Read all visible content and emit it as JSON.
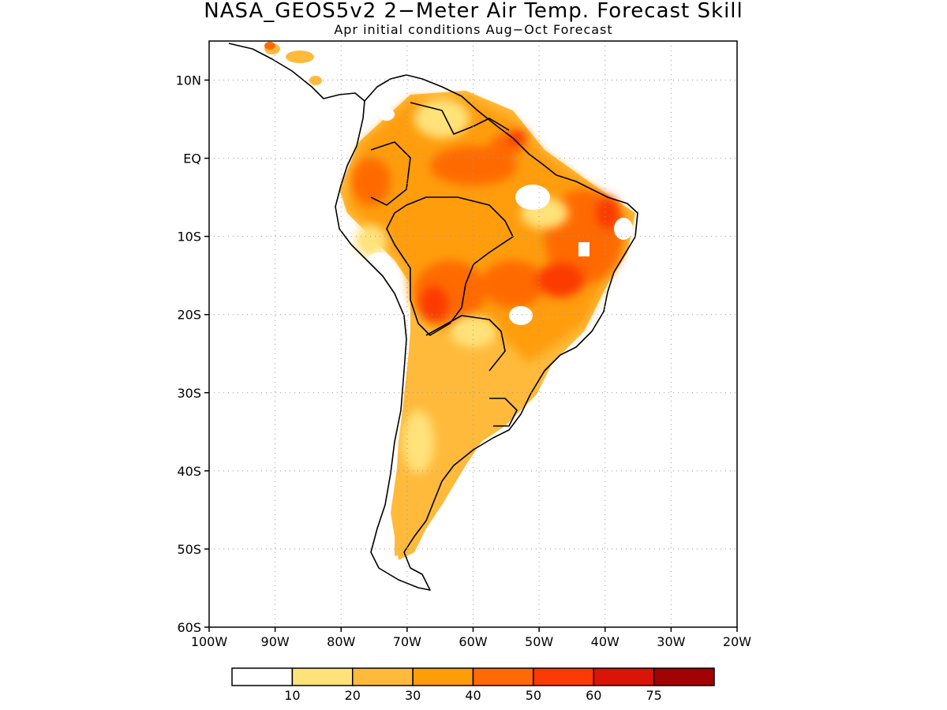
{
  "title": "NASA_GEOS5v2 2−Meter Air Temp. Forecast Skill",
  "subtitle": "Apr initial conditions  Aug−Oct Forecast",
  "map": {
    "lat_ticks": [
      {
        "lat": 10,
        "label": "10N"
      },
      {
        "lat": 0,
        "label": "EQ"
      },
      {
        "lat": -10,
        "label": "10S"
      },
      {
        "lat": -20,
        "label": "20S"
      },
      {
        "lat": -30,
        "label": "30S"
      },
      {
        "lat": -40,
        "label": "40S"
      },
      {
        "lat": -50,
        "label": "50S"
      },
      {
        "lat": -60,
        "label": "60S"
      }
    ],
    "lon_ticks": [
      {
        "lon": -100,
        "label": "100W"
      },
      {
        "lon": -90,
        "label": "90W"
      },
      {
        "lon": -80,
        "label": "80W"
      },
      {
        "lon": -70,
        "label": "70W"
      },
      {
        "lon": -60,
        "label": "60W"
      },
      {
        "lon": -50,
        "label": "50W"
      },
      {
        "lon": -40,
        "label": "40W"
      },
      {
        "lon": -30,
        "label": "30W"
      },
      {
        "lon": -20,
        "label": "20W"
      }
    ],
    "lon_range": [
      -100,
      -20
    ],
    "lat_range": [
      -60,
      15
    ],
    "gridlines": "dotted"
  },
  "legend": {
    "colors": [
      "#ffffff",
      "#ffe27a",
      "#ffba3c",
      "#ff9d08",
      "#ff6a04",
      "#fb3a05",
      "#da1406",
      "#a20204"
    ],
    "labels": [
      "10",
      "20",
      "30",
      "40",
      "50",
      "60",
      "75"
    ]
  }
}
